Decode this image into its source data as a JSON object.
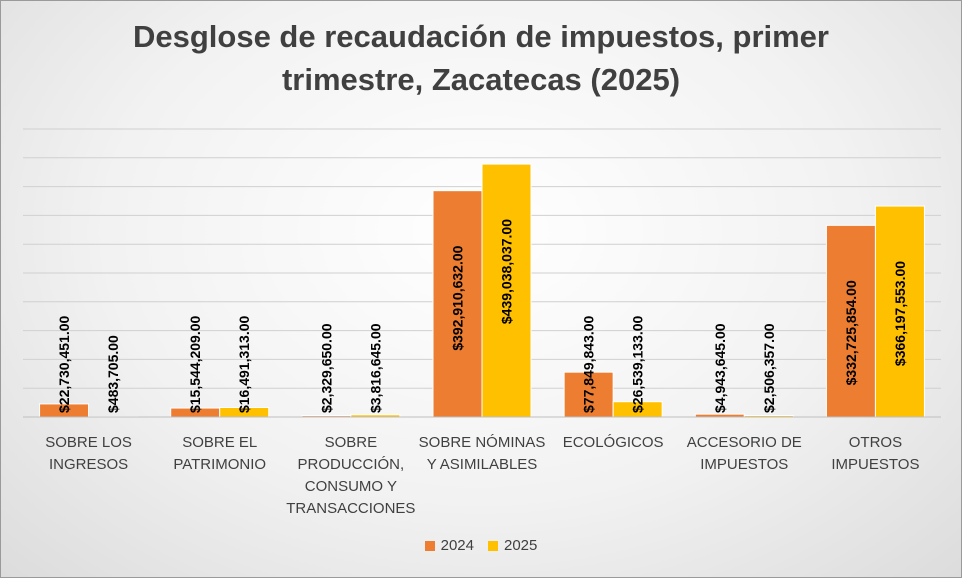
{
  "chart_data": {
    "type": "bar",
    "title": "Desglose de recaudación de impuestos, primer trimestre, Zacatecas (2025)",
    "xlabel": "",
    "ylabel": "",
    "categories": [
      "SOBRE LOS INGRESOS",
      "SOBRE EL PATRIMONIO",
      "SOBRE PRODUCCIÓN, CONSUMO Y TRANSACCIONES",
      "SOBRE NÓMINAS Y ASIMILABLES",
      "ECOLÓGICOS",
      "ACCESORIO DE IMPUESTOS",
      "OTROS IMPUESTOS"
    ],
    "series": [
      {
        "name": "2024",
        "color": "#ED7D31",
        "values": [
          22730451,
          15544209,
          2329650,
          392910632,
          77849843,
          4943645,
          332725854
        ],
        "labels": [
          "$22,730,451.00",
          "$15,544,209.00",
          "$2,329,650.00",
          "$392,910,632.00",
          "$77,849,843.00",
          "$4,943,645.00",
          "$332,725,854.00"
        ]
      },
      {
        "name": "2025",
        "color": "#FFC000",
        "values": [
          483705,
          16491313,
          3816645,
          439038037,
          26539133,
          2506357,
          366197553
        ],
        "labels": [
          "$483,705.00",
          "$16,491,313.00",
          "$3,816,645.00",
          "$439,038,037.00",
          "$26,539,133.00",
          "$2,506,357.00",
          "$366,197,553.00"
        ]
      }
    ],
    "ylim": [
      0,
      500000000
    ],
    "grid": true,
    "legend_position": "bottom"
  }
}
